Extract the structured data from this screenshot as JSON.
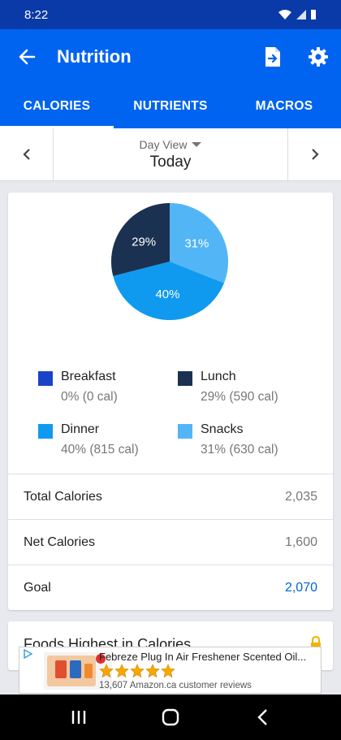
{
  "status_bar": {
    "time": "8:22"
  },
  "app_bar": {
    "title": "Nutrition"
  },
  "tabs": [
    {
      "label": "CALORIES",
      "active": true
    },
    {
      "label": "NUTRIENTS",
      "active": false
    },
    {
      "label": "MACROS",
      "active": false
    }
  ],
  "date_nav": {
    "view": "Day View",
    "day": "Today"
  },
  "chart_data": {
    "type": "pie",
    "slices": [
      {
        "name": "Breakfast",
        "percent": 0,
        "color": "#1a44c8"
      },
      {
        "name": "Lunch",
        "percent": 29,
        "color": "#1b3152"
      },
      {
        "name": "Dinner",
        "percent": 40,
        "color": "#0f9af0"
      },
      {
        "name": "Snacks",
        "percent": 31,
        "color": "#52b5f5"
      }
    ],
    "slice_labels": [
      "29%",
      "31%",
      "40%"
    ]
  },
  "legend": [
    {
      "name": "Breakfast",
      "value": "0% (0 cal)",
      "color": "#1a44c8"
    },
    {
      "name": "Lunch",
      "value": "29% (590 cal)",
      "color": "#1b3152"
    },
    {
      "name": "Dinner",
      "value": "40% (815 cal)",
      "color": "#0f9af0"
    },
    {
      "name": "Snacks",
      "value": "31% (630 cal)",
      "color": "#52b5f5"
    }
  ],
  "summary": {
    "total_label": "Total Calories",
    "total_value": "2,035",
    "net_label": "Net Calories",
    "net_value": "1,600",
    "goal_label": "Goal",
    "goal_value": "2,070"
  },
  "foods_card": {
    "title": "Foods Highest in Calories"
  },
  "ad": {
    "headline": "Febreze Plug In Air Freshener Scented Oil...",
    "reviews": "13,607 Amazon.ca customer reviews",
    "rating": 5
  }
}
